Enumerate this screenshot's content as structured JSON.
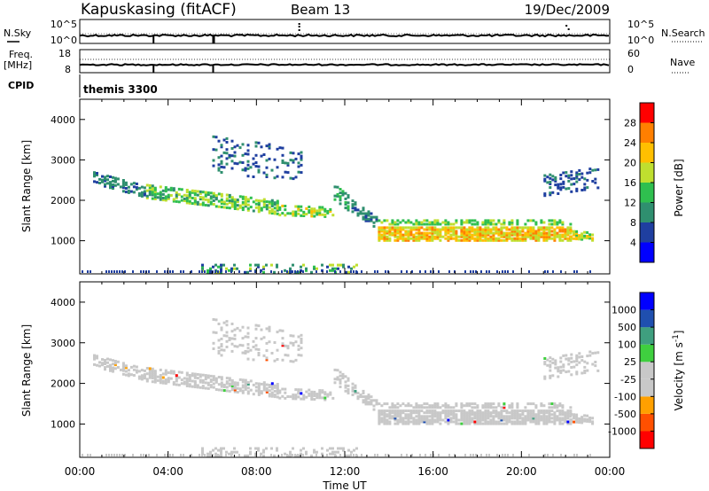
{
  "header": {
    "station": "Kapuskasing (fitACF)",
    "beam": "Beam 13",
    "date": "19/Dec/2009"
  },
  "summary": {
    "nsky_label": "N.Sky",
    "nsky_top": "10^5",
    "nsky_bottom": "10^0",
    "nsearch_label": "N.Search",
    "nsearch_top": "10^5",
    "nsearch_bottom": "10^0",
    "freq_label": "Freq.",
    "freq_unit": "[MHz]",
    "freq_top": "18",
    "freq_bottom": "8",
    "nave_label": "Nave",
    "nave_top": "60",
    "nave_bottom": "0",
    "cpid_label": "CPID",
    "cpid_value": "themis 3300"
  },
  "colors": {
    "power": [
      "#0000ff",
      "#1f3fa0",
      "#2f8f6f",
      "#2fbf4f",
      "#bfdf2f",
      "#ffbf00",
      "#ff7f00",
      "#ff0000"
    ],
    "velocity": [
      "#ff0000",
      "#ff5000",
      "#ffa000",
      "#c8c8c8",
      "#c8c8c8",
      "#3fcf3f",
      "#3f9f7f",
      "#1f4faf",
      "#0000ff"
    ],
    "ground": "#c8c8c8"
  },
  "chart_data": [
    {
      "type": "heatmap",
      "name": "power",
      "ylabel": "Slant Range [km]",
      "xlim_hours": [
        0,
        24
      ],
      "ylim": [
        180,
        4500
      ],
      "y_ticks": [
        1000,
        2000,
        3000,
        4000
      ],
      "colorbar_label": "Power [dB]",
      "colorbar_range": [
        0,
        32
      ],
      "colorbar_ticks": [
        "4",
        "8",
        "12",
        "16",
        "20",
        "24",
        "28"
      ],
      "bands": [
        {
          "x": [
            0.6,
            3.0
          ],
          "r_center": [
            2600,
            2250
          ],
          "r_width": 300,
          "db": [
            6,
            12
          ],
          "density": 0.55
        },
        {
          "x": [
            3.0,
            9.0
          ],
          "r_center": [
            2250,
            1850
          ],
          "r_width": 320,
          "db": [
            10,
            20
          ],
          "density": 0.6
        },
        {
          "x": [
            9.0,
            11.5
          ],
          "r_center": [
            1800,
            1750
          ],
          "r_width": 260,
          "db": [
            12,
            22
          ],
          "density": 0.55
        },
        {
          "x": [
            11.5,
            12.2
          ],
          "r_center": [
            2250,
            1950
          ],
          "r_width": 400,
          "db": [
            8,
            14
          ],
          "density": 0.5
        },
        {
          "x": [
            12.3,
            13.5
          ],
          "r_center": [
            1900,
            1450
          ],
          "r_width": 300,
          "db": [
            6,
            12
          ],
          "density": 0.5
        },
        {
          "x": [
            13.5,
            22.2
          ],
          "r_center": [
            1200,
            1200
          ],
          "r_width": 320,
          "db": [
            16,
            26
          ],
          "density": 0.85
        },
        {
          "x": [
            13.5,
            22.2
          ],
          "r_center": [
            1500,
            1500
          ],
          "r_width": 120,
          "db": [
            12,
            18
          ],
          "density": 0.55
        },
        {
          "x": [
            22.2,
            23.2
          ],
          "r_center": [
            1200,
            1150
          ],
          "r_width": 220,
          "db": [
            14,
            22
          ],
          "density": 0.6
        },
        {
          "x": [
            21.0,
            23.5
          ],
          "r_center": [
            2400,
            2600
          ],
          "r_width": 500,
          "db": [
            4,
            10
          ],
          "density": 0.3
        },
        {
          "x": [
            6.0,
            10.0
          ],
          "r_center": [
            3200,
            2900
          ],
          "r_width": 900,
          "db": [
            4,
            10
          ],
          "density": 0.15
        },
        {
          "x": [
            5.5,
            12.5
          ],
          "r_center": [
            350,
            350
          ],
          "r_width": 200,
          "db": [
            4,
            20
          ],
          "density": 0.3
        }
      ]
    },
    {
      "type": "heatmap",
      "name": "velocity",
      "xlabel": "Time UT",
      "ylabel": "Slant Range [km]",
      "xlim_hours": [
        0,
        24
      ],
      "ylim": [
        180,
        4500
      ],
      "x_ticks": [
        "00:00",
        "04:00",
        "08:00",
        "12:00",
        "16:00",
        "20:00",
        "00:00"
      ],
      "y_ticks": [
        1000,
        2000,
        3000,
        4000
      ],
      "colorbar_label": "Velocity [m s^-1]",
      "colorbar_ticks": [
        "1000",
        "500",
        "100",
        "25",
        "-25",
        "-100",
        "-500",
        "-1000"
      ],
      "mostly_ground_scatter": true
    }
  ]
}
